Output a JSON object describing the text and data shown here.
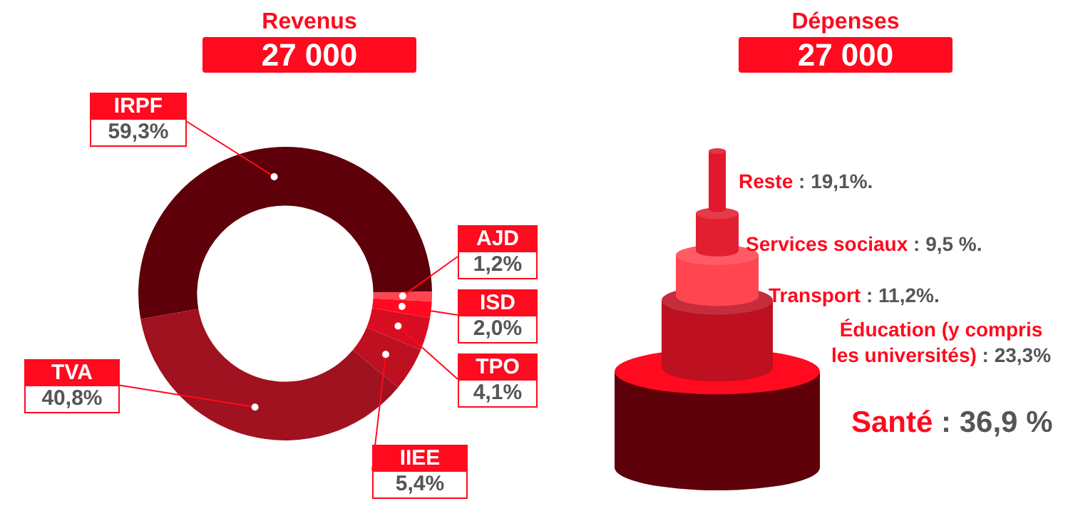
{
  "chart_data": [
    {
      "type": "donut",
      "title": "Revenus",
      "subtitle": "27 000",
      "categories": [
        "IRPF",
        "AJD",
        "ISD",
        "TPO",
        "IIEE",
        "TVA"
      ],
      "values": [
        59.3,
        1.2,
        2.0,
        4.1,
        5.4,
        40.8
      ],
      "value_labels": [
        "59,3%",
        "1,2%",
        "2,0%",
        "4,1%",
        "5,4%",
        "40,8%"
      ],
      "colors": [
        "#5e0009",
        "#ff4550",
        "#ff0a1e",
        "#d90d22",
        "#bd1020",
        "#a0121f"
      ]
    },
    {
      "type": "other",
      "title": "Dépenses",
      "subtitle": "27 000",
      "categories": [
        "Reste",
        "Services sociaux",
        "Transport",
        "Éducation (y compris les universités)",
        "Santé"
      ],
      "values": [
        19.1,
        9.5,
        11.2,
        23.3,
        36.9
      ],
      "value_labels": [
        ": 19,1%.",
        ": 9,5 %.",
        ": 11,2%.",
        ": 23,3%",
        ": 36,9 %"
      ],
      "colors": [
        "#e0192e",
        "#e21f30",
        "#ff4550",
        "#bd1020",
        "#5e0009"
      ]
    }
  ]
}
